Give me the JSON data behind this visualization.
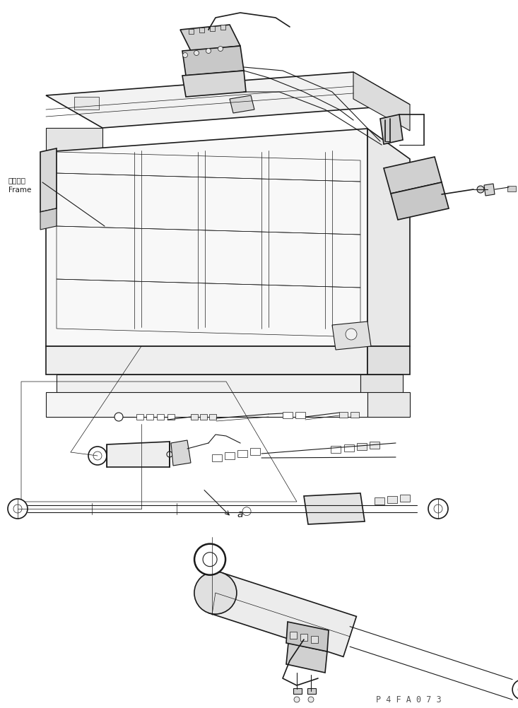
{
  "bg_color": "#ffffff",
  "lc": "#1a1a1a",
  "label_frame_jp": "フレーム",
  "label_frame_en": "Frame",
  "watermark": "P 4 F A 0 7 3",
  "fig_width": 7.33,
  "fig_height": 10.02,
  "dpi": 100
}
